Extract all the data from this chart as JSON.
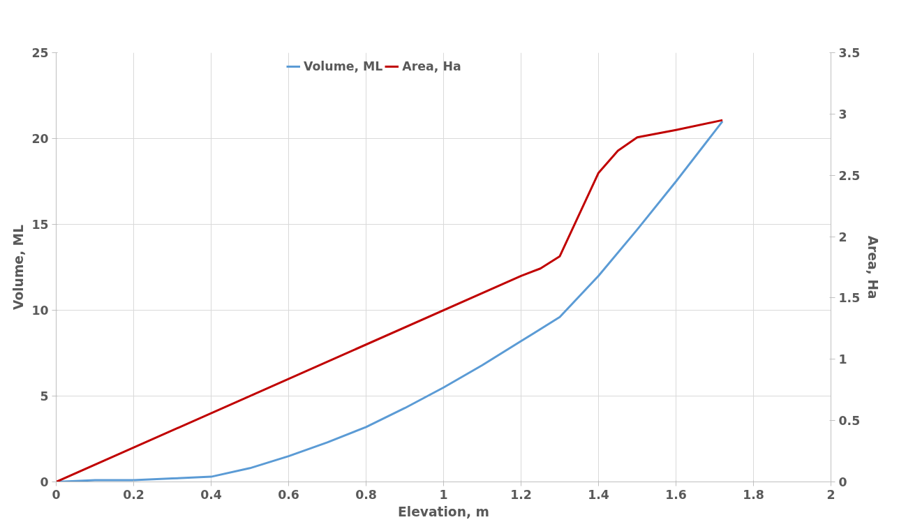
{
  "chart_data": {
    "type": "line",
    "xlabel": "Elevation, m",
    "ylabel": "Volume, ML",
    "y2label": "Area, Ha",
    "xlim": [
      0,
      2
    ],
    "xticks": [
      0,
      0.2,
      0.4,
      0.6,
      0.8,
      1,
      1.2,
      1.4,
      1.6,
      1.8,
      2
    ],
    "ylim": [
      0,
      25
    ],
    "yticks": [
      0,
      5,
      10,
      15,
      20,
      25
    ],
    "y2lim": [
      0,
      3.5
    ],
    "y2ticks": [
      0,
      0.5,
      1,
      1.5,
      2,
      2.5,
      3,
      3.5
    ],
    "grid": true,
    "legend": "top",
    "marker": "none",
    "line_style": "solid",
    "series": [
      {
        "name": "Volume, ML",
        "color": "#5b9bd5",
        "x": [
          0,
          0.1,
          0.2,
          0.3,
          0.4,
          0.5,
          0.6,
          0.7,
          0.8,
          0.9,
          1.0,
          1.1,
          1.2,
          1.3,
          1.4,
          1.5,
          1.6,
          1.72
        ],
        "values": [
          0,
          0.1,
          0.1,
          0.2,
          0.3,
          0.8,
          1.5,
          2.3,
          3.2,
          4.3,
          5.5,
          6.8,
          8.2,
          9.6,
          12,
          14.7,
          17.5,
          21
        ]
      },
      {
        "name": "Area, Ha",
        "color": "#c00000",
        "axis": "y2",
        "x": [
          0,
          1.2,
          1.25,
          1.3,
          1.35,
          1.4,
          1.45,
          1.5,
          1.6,
          1.72
        ],
        "values": [
          0,
          1.68,
          1.74,
          1.84,
          2.18,
          2.52,
          2.7,
          2.81,
          2.87,
          2.95
        ]
      }
    ]
  }
}
